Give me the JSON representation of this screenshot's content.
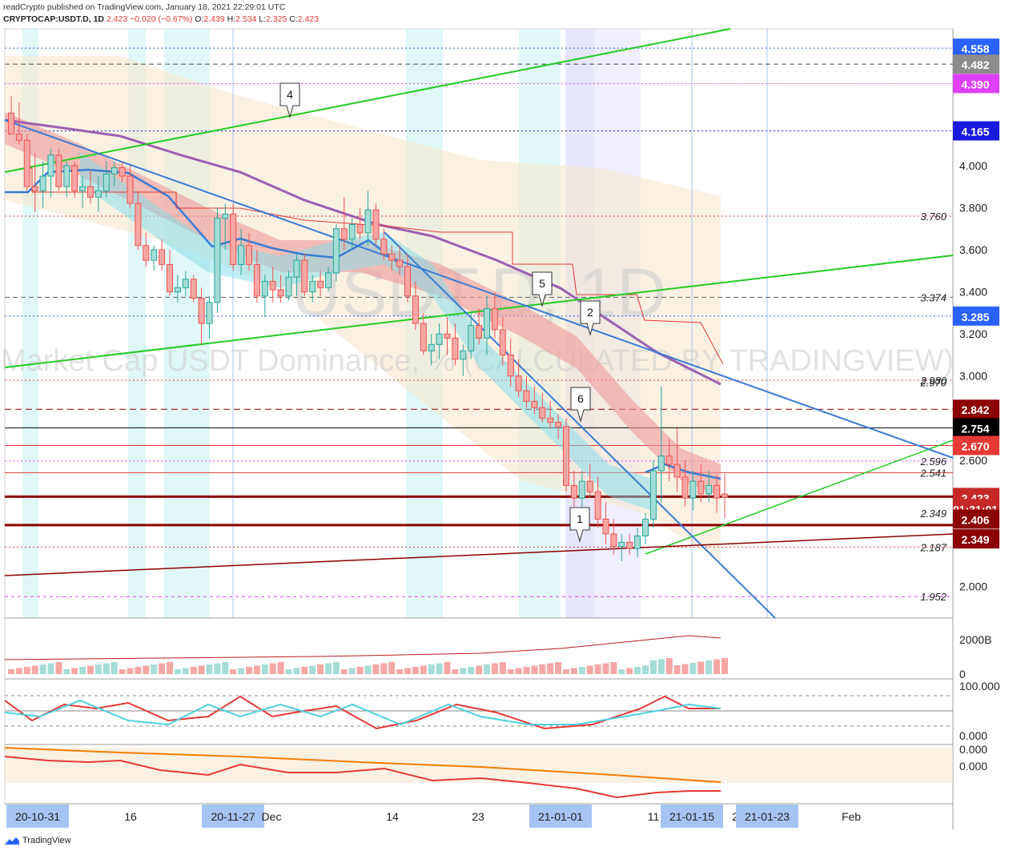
{
  "header": {
    "line1": "readCrypto published on TradingView.com, January 18, 2021 22:29:01 UTC",
    "symbol": "CRYPTOCAP:USDT.D, 1D",
    "last": "2.423",
    "change": "−0.020 (−0.67%)",
    "o_label": "O:",
    "o": "2.439",
    "h_label": "H:",
    "h": "2.534",
    "l_label": "L:",
    "l": "2.325",
    "c_label": "C:",
    "c": "2.423"
  },
  "watermark": {
    "symbol": "USDT.D, 1D",
    "description": "Market Cap USDT Dominance, % (CALCULATED BY TRADINGVIEW)"
  },
  "footer": {
    "brand": "TradingView"
  },
  "colors": {
    "up": "#26a69a",
    "down": "#ef5350",
    "blue_line": "#3a7bd5",
    "green_line": "#22cc22",
    "purple_ma": "#9c5fb0",
    "maroon": "#8b0000"
  },
  "chart_data": {
    "type": "candlestick",
    "y_axis": {
      "ylim": [
        1.85,
        4.65
      ],
      "ticks": [
        2.0,
        2.2,
        2.4,
        2.6,
        2.8,
        3.0,
        3.2,
        3.4,
        3.6,
        3.8,
        4.0
      ]
    },
    "x_axis": {
      "ticks": [
        "20-10-31",
        "16",
        "20-11-27",
        "Dec",
        "14",
        "23",
        "21-01-01",
        "11",
        "21-01-15",
        "2",
        "21-01-23",
        "Feb"
      ],
      "highlighted": [
        "20-10-31",
        "20-11-27",
        "21-01-01",
        "21-01-15",
        "21-01-23"
      ]
    },
    "price_badges": [
      {
        "label": "4.558",
        "value": 4.558,
        "color": "#2962ff"
      },
      {
        "label": "4.482",
        "value": 4.482,
        "color": "#8c8c8c"
      },
      {
        "label": "4.390",
        "value": 4.39,
        "color": "#e040fb"
      },
      {
        "label": "4.165",
        "value": 4.165,
        "color": "#1a1adf"
      },
      {
        "label": "3.285",
        "value": 3.285,
        "color": "#2962ff"
      },
      {
        "label": "2.842",
        "value": 2.842,
        "color": "#8b0000"
      },
      {
        "label": "2.754",
        "value": 2.754,
        "color": "#000000"
      },
      {
        "label": "2.670",
        "value": 2.67,
        "color": "#e53935"
      },
      {
        "label": "2.423",
        "value": 2.423,
        "color": "#c62828"
      },
      {
        "label": "01:31:01",
        "value": 2.37,
        "color": "#c62828"
      },
      {
        "label": "2.406",
        "value": 2.32,
        "color": "#8b0000"
      },
      {
        "label": "2.349",
        "value": 2.226,
        "color": "#8b0000"
      }
    ],
    "level_labels": [
      {
        "label": "3.760",
        "value": 3.76
      },
      {
        "label": "3.374",
        "value": 3.374
      },
      {
        "label": "2.980",
        "value": 2.98
      },
      {
        "label": "2.970",
        "value": 2.97
      },
      {
        "label": "2.596",
        "value": 2.596
      },
      {
        "label": "2.541",
        "value": 2.541
      },
      {
        "label": "2.349",
        "value": 2.349
      },
      {
        "label": "2.187",
        "value": 2.187
      },
      {
        "label": "1.952",
        "value": 1.952
      }
    ],
    "candles": [
      [
        4.25,
        4.33,
        4.15,
        4.15
      ],
      [
        4.15,
        4.3,
        4.1,
        4.12
      ],
      [
        4.12,
        4.15,
        3.88,
        3.9
      ],
      [
        3.9,
        4.06,
        3.78,
        3.88
      ],
      [
        3.88,
        4.02,
        3.8,
        3.95
      ],
      [
        3.95,
        4.08,
        3.85,
        4.05
      ],
      [
        4.05,
        4.08,
        3.88,
        3.9
      ],
      [
        3.9,
        4.02,
        3.85,
        4.0
      ],
      [
        4.0,
        4.02,
        3.85,
        3.88
      ],
      [
        3.88,
        3.95,
        3.8,
        3.9
      ],
      [
        3.9,
        3.98,
        3.82,
        3.85
      ],
      [
        3.85,
        3.95,
        3.78,
        3.88
      ],
      [
        3.88,
        4.02,
        3.85,
        3.96
      ],
      [
        3.96,
        4.02,
        3.9,
        3.99
      ],
      [
        3.99,
        4.02,
        3.92,
        3.95
      ],
      [
        3.95,
        4.0,
        3.8,
        3.82
      ],
      [
        3.82,
        3.88,
        3.6,
        3.62
      ],
      [
        3.62,
        3.68,
        3.52,
        3.55
      ],
      [
        3.55,
        3.62,
        3.5,
        3.6
      ],
      [
        3.6,
        3.65,
        3.5,
        3.53
      ],
      [
        3.53,
        3.6,
        3.38,
        3.4
      ],
      [
        3.4,
        3.48,
        3.35,
        3.42
      ],
      [
        3.42,
        3.5,
        3.38,
        3.46
      ],
      [
        3.46,
        3.48,
        3.35,
        3.37
      ],
      [
        3.37,
        3.42,
        3.15,
        3.25
      ],
      [
        3.25,
        3.38,
        3.18,
        3.35
      ],
      [
        3.35,
        3.8,
        3.3,
        3.75
      ],
      [
        3.75,
        3.82,
        3.6,
        3.77
      ],
      [
        3.77,
        3.82,
        3.5,
        3.53
      ],
      [
        3.53,
        3.7,
        3.48,
        3.62
      ],
      [
        3.62,
        3.68,
        3.5,
        3.53
      ],
      [
        3.53,
        3.6,
        3.35,
        3.38
      ],
      [
        3.38,
        3.48,
        3.28,
        3.45
      ],
      [
        3.45,
        3.52,
        3.35,
        3.41
      ],
      [
        3.41,
        3.48,
        3.35,
        3.38
      ],
      [
        3.38,
        3.5,
        3.36,
        3.47
      ],
      [
        3.47,
        3.58,
        3.38,
        3.55
      ],
      [
        3.55,
        3.58,
        3.38,
        3.4
      ],
      [
        3.4,
        3.48,
        3.35,
        3.45
      ],
      [
        3.45,
        3.5,
        3.38,
        3.42
      ],
      [
        3.42,
        3.52,
        3.4,
        3.49
      ],
      [
        3.49,
        3.72,
        3.45,
        3.7
      ],
      [
        3.7,
        3.85,
        3.6,
        3.65
      ],
      [
        3.65,
        3.75,
        3.6,
        3.72
      ],
      [
        3.72,
        3.8,
        3.65,
        3.68
      ],
      [
        3.68,
        3.88,
        3.62,
        3.79
      ],
      [
        3.79,
        3.82,
        3.62,
        3.65
      ],
      [
        3.65,
        3.7,
        3.55,
        3.58
      ],
      [
        3.58,
        3.62,
        3.5,
        3.55
      ],
      [
        3.55,
        3.62,
        3.48,
        3.52
      ],
      [
        3.52,
        3.58,
        3.35,
        3.38
      ],
      [
        3.38,
        3.45,
        3.22,
        3.25
      ],
      [
        3.25,
        3.3,
        3.1,
        3.12
      ],
      [
        3.12,
        3.2,
        3.05,
        3.15
      ],
      [
        3.15,
        3.25,
        3.08,
        3.2
      ],
      [
        3.2,
        3.28,
        3.1,
        3.18
      ],
      [
        3.18,
        3.25,
        3.05,
        3.08
      ],
      [
        3.08,
        3.15,
        3.0,
        3.12
      ],
      [
        3.12,
        3.3,
        3.08,
        3.24
      ],
      [
        3.24,
        3.32,
        3.15,
        3.18
      ],
      [
        3.18,
        3.38,
        3.1,
        3.32
      ],
      [
        3.32,
        3.4,
        3.18,
        3.22
      ],
      [
        3.22,
        3.28,
        3.05,
        3.1
      ],
      [
        3.1,
        3.18,
        2.95,
        3.0
      ],
      [
        3.0,
        3.08,
        2.9,
        2.93
      ],
      [
        2.93,
        3.0,
        2.85,
        2.88
      ],
      [
        2.88,
        2.95,
        2.82,
        2.85
      ],
      [
        2.85,
        2.92,
        2.78,
        2.8
      ],
      [
        2.8,
        2.88,
        2.75,
        2.78
      ],
      [
        2.78,
        2.82,
        2.7,
        2.76
      ],
      [
        2.76,
        2.8,
        2.45,
        2.48
      ],
      [
        2.48,
        2.55,
        2.38,
        2.42
      ],
      [
        2.42,
        2.55,
        2.35,
        2.5
      ],
      [
        2.5,
        2.58,
        2.42,
        2.45
      ],
      [
        2.45,
        2.52,
        2.28,
        2.32
      ],
      [
        2.32,
        2.4,
        2.2,
        2.25
      ],
      [
        2.25,
        2.32,
        2.15,
        2.19
      ],
      [
        2.19,
        2.25,
        2.12,
        2.21
      ],
      [
        2.21,
        2.25,
        2.15,
        2.18
      ],
      [
        2.18,
        2.28,
        2.14,
        2.24
      ],
      [
        2.24,
        2.35,
        2.2,
        2.32
      ],
      [
        2.32,
        2.6,
        2.28,
        2.55
      ],
      [
        2.55,
        2.95,
        2.4,
        2.62
      ],
      [
        2.62,
        2.7,
        2.5,
        2.58
      ],
      [
        2.58,
        2.75,
        2.45,
        2.52
      ],
      [
        2.52,
        2.6,
        2.38,
        2.42
      ],
      [
        2.42,
        2.55,
        2.36,
        2.5
      ],
      [
        2.5,
        2.58,
        2.4,
        2.44
      ],
      [
        2.44,
        2.55,
        2.4,
        2.48
      ],
      [
        2.48,
        2.53,
        2.35,
        2.42
      ],
      [
        2.439,
        2.534,
        2.325,
        2.423
      ]
    ]
  }
}
